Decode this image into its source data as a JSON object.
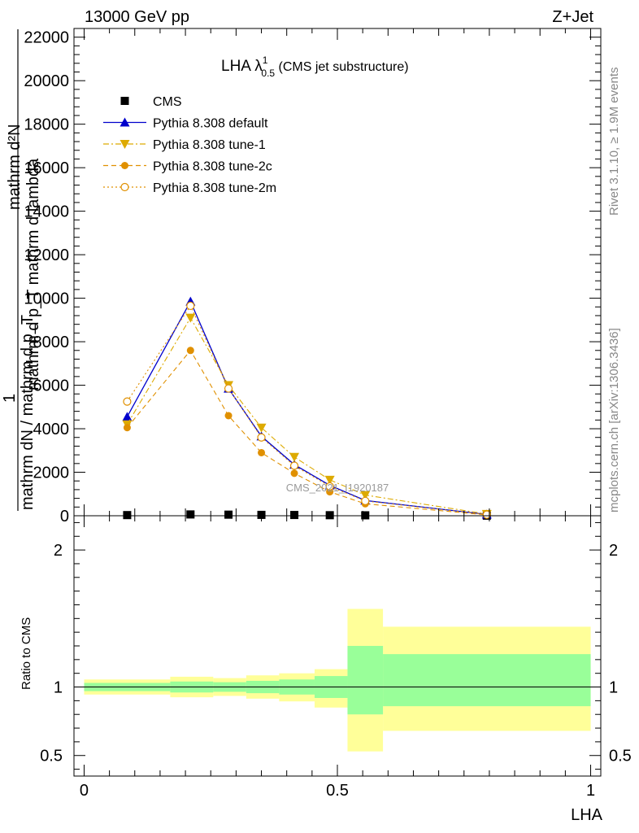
{
  "header": {
    "energy_label": "13000 GeV pp",
    "process_label": "Z+Jet"
  },
  "side_text": {
    "rivet": "Rivet 3.1.10, ≥ 1.9M events",
    "mcplots": "mcplots.cern.ch [arXiv:1306.3436]"
  },
  "watermark": "CMS_2021_I1920187",
  "chart_data": [
    {
      "type": "line",
      "title": {
        "main": "LHA λ",
        "sup": "1",
        "sub": "0.5",
        "rest": " (CMS jet substructure)"
      },
      "ylabel": {
        "line1": "mathrm d²N",
        "line2": "mathrm d p_T mathrm d lambda",
        "prefix": "1",
        "line3": "mathrm dN / mathrm d p_T"
      },
      "xlim": [
        -0.02,
        1.02
      ],
      "ylim": [
        0,
        22400
      ],
      "y_ticks": [
        0,
        2000,
        4000,
        6000,
        8000,
        10000,
        12000,
        14000,
        16000,
        18000,
        20000,
        22000
      ],
      "y_tick_labels": [
        "0",
        "2000",
        "4000",
        "6000",
        "8000",
        "10000",
        "12000",
        "14000",
        "16000",
        "18000",
        "20000",
        "22000"
      ],
      "x": [
        0.085,
        0.21,
        0.285,
        0.35,
        0.415,
        0.485,
        0.555,
        0.795
      ],
      "series": [
        {
          "name": "CMS",
          "color": "#000000",
          "marker": "square",
          "dash": "none",
          "values": [
            30,
            60,
            50,
            40,
            35,
            25,
            20,
            5
          ]
        },
        {
          "name": "Pythia 8.308 default",
          "color": "#0000cc",
          "marker": "triangle-up",
          "dash": "solid",
          "values": [
            4550,
            9850,
            5850,
            3650,
            2350,
            1400,
            700,
            60
          ]
        },
        {
          "name": "Pythia 8.308 tune-1",
          "color": "#ddaa00",
          "marker": "triangle-down",
          "dash": "dashdot",
          "values": [
            4200,
            9100,
            6000,
            4050,
            2700,
            1650,
            950,
            80
          ]
        },
        {
          "name": "Pythia 8.308 tune-2c",
          "color": "#e09000",
          "marker": "circle",
          "dash": "dashed",
          "values": [
            4050,
            7600,
            4600,
            2900,
            1950,
            1100,
            550,
            40
          ]
        },
        {
          "name": "Pythia 8.308 tune-2m",
          "color": "#e09000",
          "marker": "circle-open",
          "dash": "dotted",
          "values": [
            5250,
            9650,
            5850,
            3600,
            2300,
            1350,
            680,
            50
          ]
        }
      ]
    },
    {
      "type": "area",
      "ylabel": "Ratio to CMS",
      "xlabel": "LHA",
      "xlim": [
        -0.02,
        1.02
      ],
      "ylim": [
        0.35,
        2.25
      ],
      "y_ticks": [
        0.5,
        1,
        2
      ],
      "y_tick_labels": [
        "0.5",
        "1",
        "2"
      ],
      "x_ticks": [
        0,
        0.5,
        1
      ],
      "x_tick_labels": [
        "0",
        "0.5",
        "1"
      ],
      "reference_line": 1,
      "bin_edges": [
        0,
        0.17,
        0.255,
        0.32,
        0.385,
        0.455,
        0.52,
        0.59,
        1.0
      ],
      "band_inner": {
        "color": "#99ff99",
        "low": [
          0.97,
          0.96,
          0.965,
          0.955,
          0.945,
          0.92,
          0.8,
          0.86
        ],
        "high": [
          1.03,
          1.04,
          1.035,
          1.045,
          1.055,
          1.08,
          1.3,
          1.24
        ]
      },
      "band_outer": {
        "color": "#ffff99",
        "low": [
          0.945,
          0.925,
          0.935,
          0.915,
          0.895,
          0.85,
          0.53,
          0.68
        ],
        "high": [
          1.055,
          1.075,
          1.065,
          1.085,
          1.1,
          1.13,
          1.57,
          1.44
        ]
      }
    }
  ]
}
